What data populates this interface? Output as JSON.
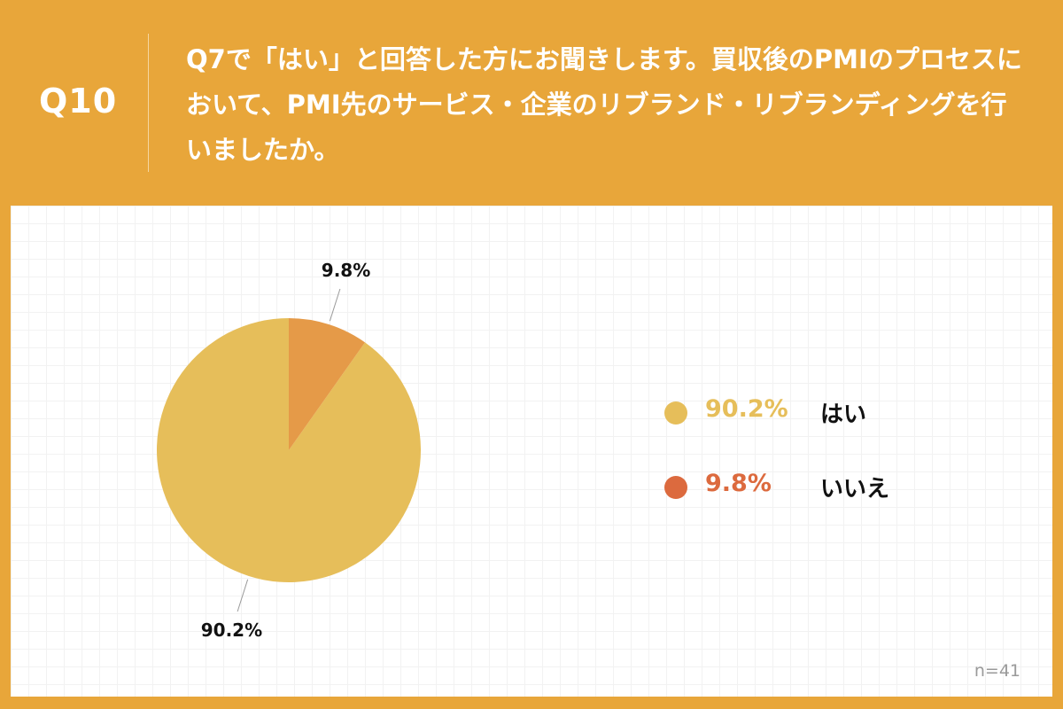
{
  "header": {
    "question_number": "Q10",
    "question_text": "Q7で「はい」と回答した方にお聞きします。買収後のPMIのプロセスにおいて、PMI先のサービス・企業のリブランド・リブランディングを行いましたか。"
  },
  "chart_data": {
    "type": "pie",
    "start": "top",
    "direction": "counterclockwise",
    "slices": [
      {
        "label": "はい",
        "value": 90.2,
        "display": "90.2%",
        "color": "#E6BE5A",
        "legend_color": "#E6BE5A",
        "legend_text_color": "#E6BE5A"
      },
      {
        "label": "いいえ",
        "value": 9.8,
        "display": "9.8%",
        "color": "#E59A48",
        "legend_color": "#DC6A3E",
        "legend_text_color": "#DC6A3E"
      }
    ]
  },
  "note": "n=41",
  "colors": {
    "background": "#E8A63A",
    "panel": "#FFFFFF"
  }
}
